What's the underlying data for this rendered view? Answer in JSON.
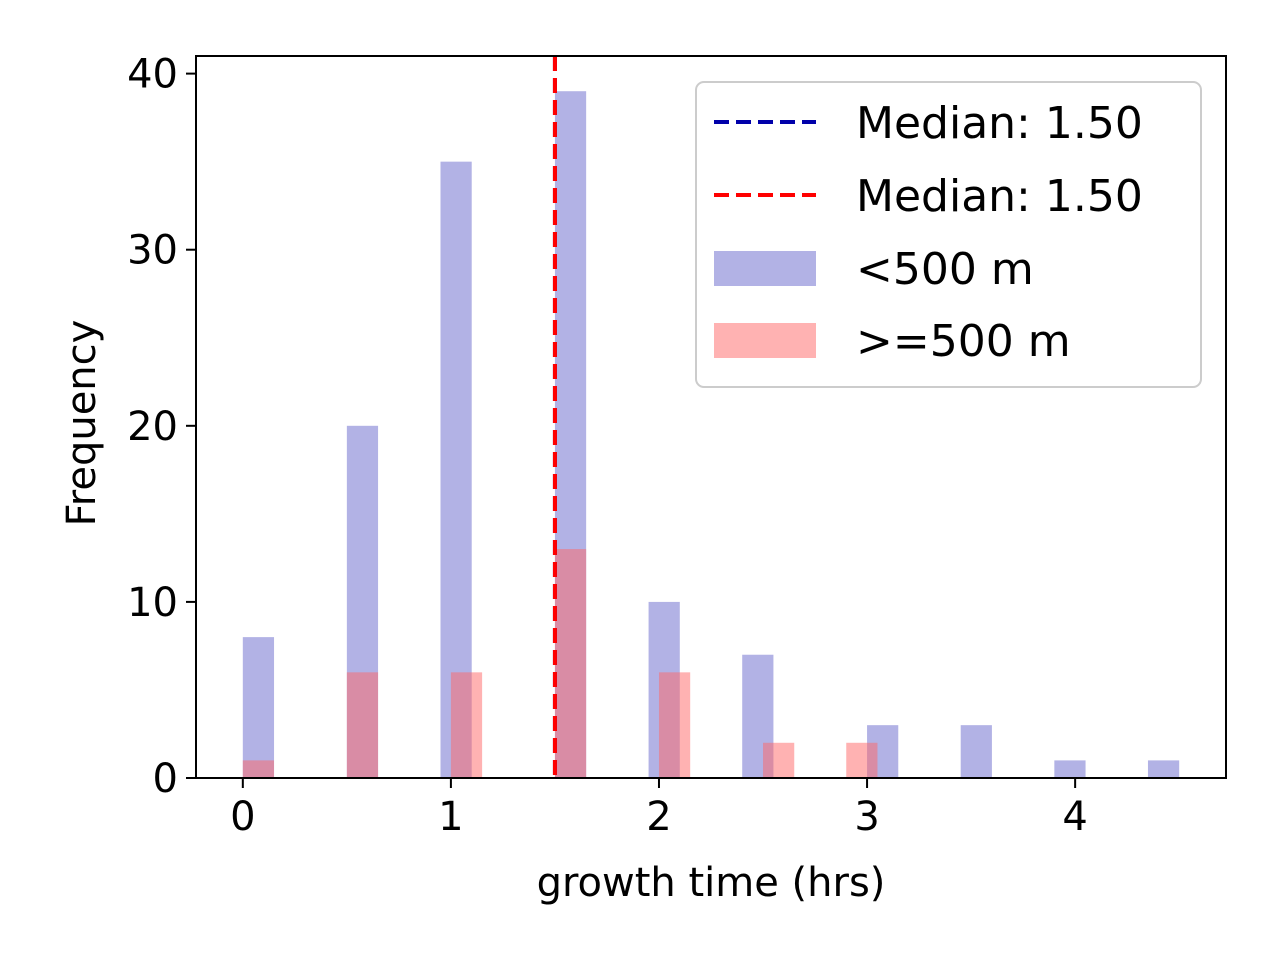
{
  "chart_data": {
    "type": "bar",
    "title": "",
    "xlabel": "growth time (hrs)",
    "ylabel": "Frequency",
    "xlim": [
      -0.225,
      4.725
    ],
    "ylim": [
      0,
      41
    ],
    "xticks": [
      0,
      1,
      2,
      3,
      4
    ],
    "yticks": [
      0,
      10,
      20,
      30,
      40
    ],
    "grid": false,
    "legend_position": "top-right",
    "bin_width": 0.15,
    "series": [
      {
        "name": "<500 m",
        "color": "#6666cc",
        "opacity": 0.5,
        "bins": [
          {
            "x": 0.0,
            "value": 8
          },
          {
            "x": 0.5,
            "value": 20
          },
          {
            "x": 0.95,
            "value": 35
          },
          {
            "x": 1.5,
            "value": 39
          },
          {
            "x": 1.95,
            "value": 10
          },
          {
            "x": 2.4,
            "value": 7
          },
          {
            "x": 3.0,
            "value": 3
          },
          {
            "x": 3.45,
            "value": 3
          },
          {
            "x": 3.9,
            "value": 1
          },
          {
            "x": 4.35,
            "value": 1
          }
        ]
      },
      {
        "name": ">=500 m",
        "color": "#ff6666",
        "opacity": 0.5,
        "bins": [
          {
            "x": 0.0,
            "value": 1
          },
          {
            "x": 0.5,
            "value": 6
          },
          {
            "x": 1.0,
            "value": 6
          },
          {
            "x": 1.5,
            "value": 13
          },
          {
            "x": 2.0,
            "value": 6
          },
          {
            "x": 2.5,
            "value": 2
          },
          {
            "x": 2.9,
            "value": 2
          }
        ]
      }
    ],
    "median_lines": [
      {
        "label": "Median: 1.50",
        "value": 1.5,
        "color": "#0000aa"
      },
      {
        "label": "Median: 1.50",
        "value": 1.5,
        "color": "#ff0000"
      }
    ]
  }
}
